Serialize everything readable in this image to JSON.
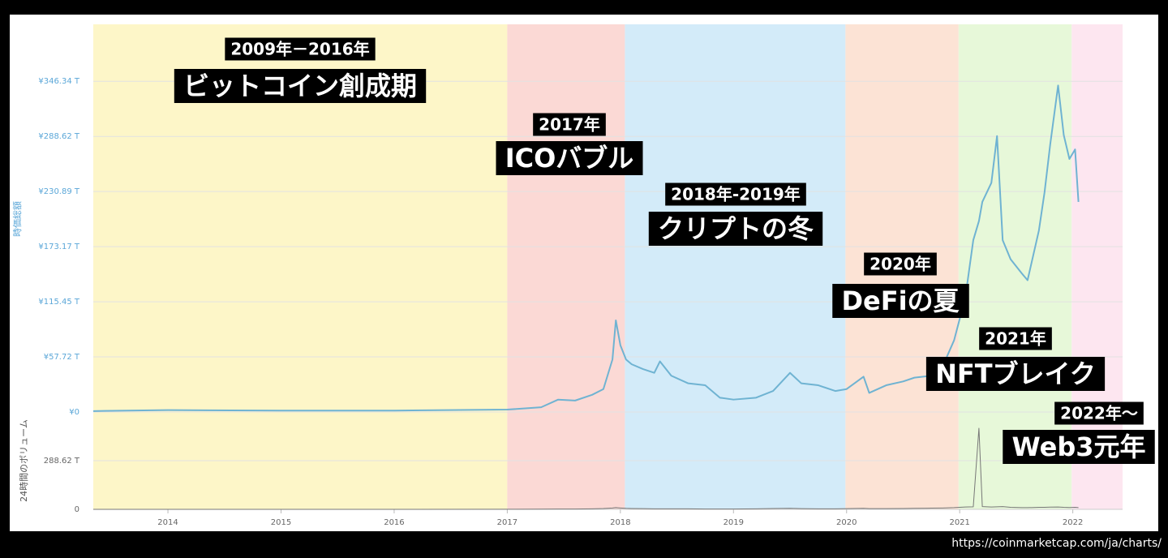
{
  "chart_data": {
    "type": "line",
    "ylabel": "時価総額",
    "y2label": "24時間のボリューム",
    "x": [
      2013.34,
      2014,
      2015,
      2016,
      2017,
      2017.3,
      2017.45,
      2017.6,
      2017.75,
      2017.85,
      2017.93,
      2017.96,
      2018,
      2018.05,
      2018.1,
      2018.2,
      2018.3,
      2018.35,
      2018.45,
      2018.6,
      2018.75,
      2018.88,
      2019,
      2019.2,
      2019.35,
      2019.5,
      2019.6,
      2019.75,
      2019.9,
      2020,
      2020.15,
      2020.2,
      2020.35,
      2020.5,
      2020.6,
      2020.75,
      2020.85,
      2020.95,
      2021.05,
      2021.12,
      2021.17,
      2021.2,
      2021.28,
      2021.33,
      2021.38,
      2021.45,
      2021.55,
      2021.6,
      2021.7,
      2021.75,
      2021.8,
      2021.87,
      2021.92,
      2021.97,
      2022.02,
      2022.05
    ],
    "series": [
      {
        "color": "#6fb3d2",
        "values": [
          1,
          2,
          1.5,
          1.5,
          2.5,
          5,
          13,
          12,
          18,
          24,
          55,
          96,
          70,
          55,
          50,
          45,
          41,
          53,
          38,
          30,
          28,
          15,
          13,
          15,
          22,
          41,
          30,
          28,
          22,
          24,
          37,
          20,
          28,
          32,
          36,
          38,
          48,
          75,
          120,
          180,
          200,
          220,
          240,
          289,
          180,
          160,
          145,
          138,
          190,
          230,
          280,
          342,
          290,
          265,
          275,
          220
        ]
      },
      {
        "color": "#777777",
        "axis": "y2",
        "values": [
          0,
          0,
          0,
          0,
          0.5,
          1,
          2,
          2,
          3,
          5,
          8,
          10,
          8,
          6,
          5,
          4,
          3,
          3,
          3,
          3,
          2,
          2,
          2,
          3,
          5,
          6,
          4,
          3,
          3,
          4,
          6,
          4,
          4,
          5,
          6,
          7,
          8,
          10,
          14,
          15,
          481,
          16,
          14,
          15,
          16,
          12,
          10,
          10,
          12,
          12,
          13,
          14,
          12,
          11,
          12,
          10
        ]
      }
    ],
    "xlim": [
      2013.34,
      2022.44
    ],
    "xticks": [
      2014,
      2015,
      2016,
      2017,
      2018,
      2019,
      2020,
      2021,
      2022
    ],
    "ylim": [
      0,
      406
    ],
    "yticks": [
      {
        "value": 0,
        "label": "¥0"
      },
      {
        "value": 57.72,
        "label": "¥57.72 T"
      },
      {
        "value": 115.45,
        "label": "¥115.45 T"
      },
      {
        "value": 173.17,
        "label": "¥173.17 T"
      },
      {
        "value": 230.89,
        "label": "¥230.89 T"
      },
      {
        "value": 288.62,
        "label": "¥288.62 T"
      },
      {
        "value": 346.34,
        "label": "¥346.34 T"
      }
    ],
    "y2lim": [
      0,
      543.6
    ],
    "y2ticks": [
      0,
      {
        "value": 288.62,
        "label": "288.62 T"
      }
    ],
    "grid": true,
    "eras": [
      {
        "start": 2013.34,
        "end": 2017.0,
        "color": "#fdf6c8",
        "period": "2009年－2016年",
        "title": "ビットコイン創成期"
      },
      {
        "start": 2017.0,
        "end": 2018.04,
        "color": "#fbd9d5",
        "period": "2017年",
        "title": "ICOバブル"
      },
      {
        "start": 2018.04,
        "end": 2019.99,
        "color": "#d3ebf9",
        "period": "2018年-2019年",
        "title": "クリプトの冬"
      },
      {
        "start": 2019.99,
        "end": 2020.99,
        "color": "#fce3d5",
        "period": "2020年",
        "title": "DeFiの夏"
      },
      {
        "start": 2020.99,
        "end": 2021.99,
        "color": "#e7f8d9",
        "period": "2021年",
        "title": "NFTブレイク"
      },
      {
        "start": 2021.99,
        "end": 2022.44,
        "color": "#fde6f0",
        "period": "2022年〜",
        "title": "Web3元年"
      }
    ]
  },
  "source": "https://coinmarketcap.com/ja/charts/"
}
